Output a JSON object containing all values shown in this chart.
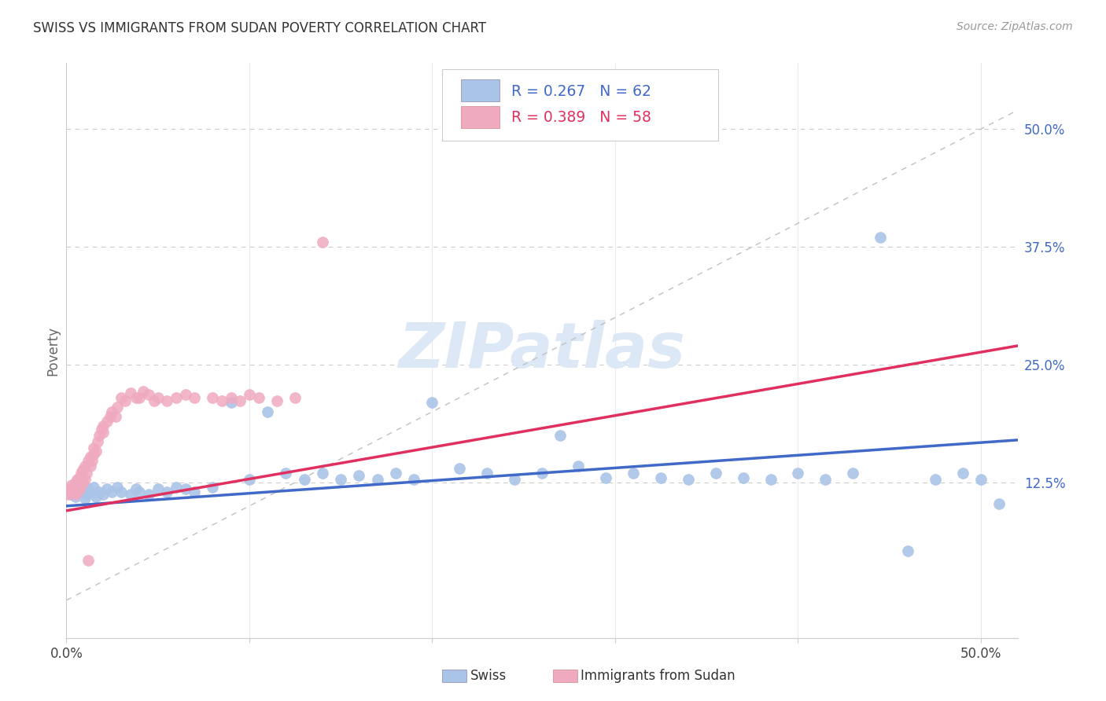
{
  "title": "SWISS VS IMMIGRANTS FROM SUDAN POVERTY CORRELATION CHART",
  "source": "Source: ZipAtlas.com",
  "ylabel": "Poverty",
  "right_yticks": [
    "50.0%",
    "37.5%",
    "25.0%",
    "12.5%"
  ],
  "right_ytick_vals": [
    0.5,
    0.375,
    0.25,
    0.125
  ],
  "xlim": [
    0.0,
    0.52
  ],
  "ylim": [
    -0.04,
    0.57
  ],
  "swiss_color": "#aac4e8",
  "sudan_color": "#f0aac0",
  "swiss_line_color": "#4169c8",
  "sudan_line_color": "#e03060",
  "swiss_R": 0.267,
  "swiss_N": 62,
  "sudan_R": 0.389,
  "sudan_N": 58,
  "background_color": "#ffffff",
  "grid_color": "#cccccc",
  "watermark_color": "#dce8f5",
  "legend_swiss_label": "Swiss",
  "legend_sudan_label": "Immigrants from Sudan",
  "swiss_x": [
    0.002,
    0.005,
    0.006,
    0.008,
    0.009,
    0.01,
    0.011,
    0.013,
    0.015,
    0.016,
    0.018,
    0.02,
    0.021,
    0.023,
    0.025,
    0.027,
    0.03,
    0.032,
    0.035,
    0.04,
    0.042,
    0.045,
    0.048,
    0.05,
    0.055,
    0.06,
    0.065,
    0.07,
    0.075,
    0.08,
    0.09,
    0.095,
    0.1,
    0.11,
    0.12,
    0.13,
    0.14,
    0.15,
    0.16,
    0.17,
    0.18,
    0.19,
    0.2,
    0.21,
    0.22,
    0.23,
    0.24,
    0.26,
    0.27,
    0.28,
    0.29,
    0.3,
    0.32,
    0.33,
    0.35,
    0.36,
    0.38,
    0.4,
    0.42,
    0.44,
    0.46,
    0.49
  ],
  "swiss_y": [
    0.115,
    0.12,
    0.11,
    0.105,
    0.125,
    0.118,
    0.112,
    0.108,
    0.115,
    0.122,
    0.118,
    0.105,
    0.11,
    0.115,
    0.108,
    0.12,
    0.112,
    0.115,
    0.105,
    0.118,
    0.11,
    0.115,
    0.108,
    0.112,
    0.115,
    0.12,
    0.125,
    0.118,
    0.115,
    0.12,
    0.21,
    0.135,
    0.125,
    0.195,
    0.13,
    0.125,
    0.13,
    0.135,
    0.125,
    0.13,
    0.135,
    0.125,
    0.21,
    0.195,
    0.135,
    0.13,
    0.125,
    0.135,
    0.17,
    0.14,
    0.13,
    0.135,
    0.13,
    0.125,
    0.135,
    0.135,
    0.13,
    0.135,
    0.13,
    0.13,
    0.05,
    0.1
  ],
  "sudan_x": [
    0.001,
    0.002,
    0.003,
    0.004,
    0.005,
    0.006,
    0.007,
    0.008,
    0.009,
    0.01,
    0.011,
    0.012,
    0.013,
    0.014,
    0.015,
    0.016,
    0.017,
    0.018,
    0.019,
    0.02,
    0.021,
    0.022,
    0.023,
    0.024,
    0.025,
    0.028,
    0.03,
    0.032,
    0.035,
    0.038,
    0.04,
    0.042,
    0.045,
    0.05,
    0.055,
    0.06,
    0.065,
    0.07,
    0.075,
    0.08,
    0.085,
    0.09,
    0.095,
    0.1,
    0.105,
    0.11,
    0.115,
    0.12,
    0.125,
    0.13,
    0.14,
    0.15,
    0.015,
    0.02,
    0.025,
    0.03,
    0.01,
    0.05
  ],
  "sudan_y": [
    0.115,
    0.112,
    0.118,
    0.11,
    0.108,
    0.115,
    0.112,
    0.118,
    0.122,
    0.115,
    0.12,
    0.118,
    0.125,
    0.13,
    0.128,
    0.122,
    0.135,
    0.138,
    0.142,
    0.145,
    0.148,
    0.155,
    0.158,
    0.162,
    0.168,
    0.175,
    0.18,
    0.175,
    0.19,
    0.185,
    0.215,
    0.22,
    0.225,
    0.215,
    0.21,
    0.215,
    0.22,
    0.215,
    0.21,
    0.215,
    0.22,
    0.215,
    0.21,
    0.22,
    0.215,
    0.21,
    0.215,
    0.19,
    0.195,
    0.2,
    0.215,
    0.21,
    0.04,
    0.035,
    0.03,
    0.025,
    0.055,
    0.025
  ],
  "swiss_line_x": [
    0.0,
    0.52
  ],
  "swiss_line_y": [
    0.1,
    0.17
  ],
  "sudan_line_x": [
    0.0,
    0.52
  ],
  "sudan_line_y": [
    0.095,
    0.27
  ]
}
